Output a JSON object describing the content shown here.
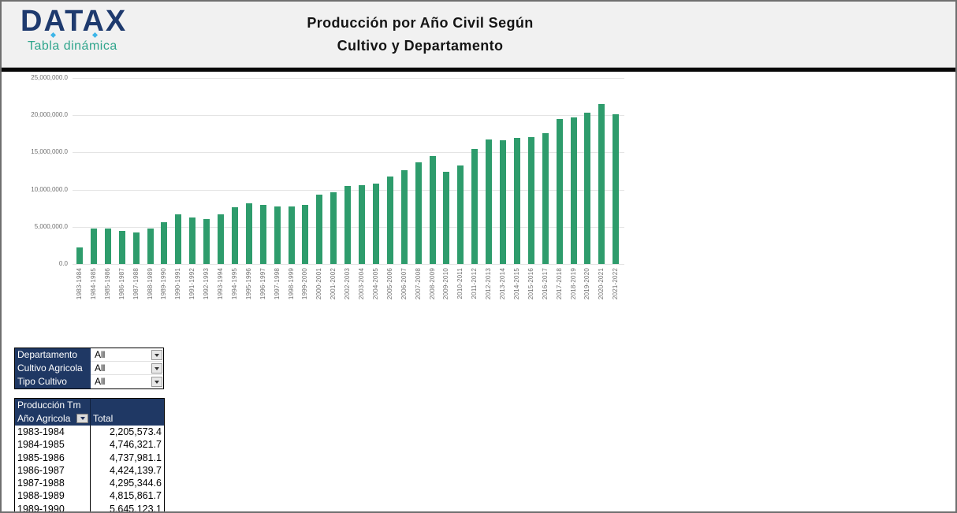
{
  "header": {
    "logo_text": "DATAX",
    "logo_subtitle": "Tabla dinámica",
    "title_line1": "Producción por Año Civil Según",
    "title_line2": "Cultivo y Departamento"
  },
  "colors": {
    "navy_header": "#1F3864",
    "logo_navy": "#1E3A6E",
    "logo_accent": "#3EB6E8",
    "subtitle_teal": "#2FA58C",
    "bar_green": "#2E9C6C",
    "gridline": "#E4E4E4",
    "axis_text": "#6F6F6F",
    "header_bg": "#F1F1F1"
  },
  "chart_data": {
    "type": "bar",
    "title": "",
    "categories": [
      "1983-1984",
      "1984-1985",
      "1985-1986",
      "1986-1987",
      "1987-1988",
      "1988-1989",
      "1989-1990",
      "1990-1991",
      "1991-1992",
      "1992-1993",
      "1993-1994",
      "1994-1995",
      "1995-1996",
      "1996-1997",
      "1997-1998",
      "1998-1999",
      "1999-2000",
      "2000-2001",
      "2001-2002",
      "2002-2003",
      "2003-2004",
      "2004-2005",
      "2005-2006",
      "2006-2007",
      "2007-2008",
      "2008-2009",
      "2009-2010",
      "2010-2011",
      "2011-2012",
      "2012-2013",
      "2013-2014",
      "2014-2015",
      "2015-2016",
      "2016-2017",
      "2017-2018",
      "2018-2019",
      "2019-2020",
      "2020-2021",
      "2021-2022"
    ],
    "values": [
      2205573.4,
      4746321.7,
      4737981.1,
      4424139.7,
      4295344.6,
      4815861.7,
      5645123.1,
      6700000,
      6300000,
      6000000,
      6700000,
      7600000,
      8150000,
      8000000,
      7700000,
      7700000,
      7950000,
      9300000,
      9600000,
      10450000,
      10550000,
      10850000,
      11750000,
      12650000,
      13650000,
      14550000,
      12450000,
      13200000,
      15450000,
      16700000,
      16650000,
      17000000,
      17100000,
      17550000,
      19450000,
      19750000,
      20300000,
      21500000,
      20150000
    ],
    "xlabel": "",
    "ylabel": "",
    "ylim": [
      0,
      25000000
    ],
    "grid": true,
    "legend": "none",
    "x_label_rotation": -90,
    "y_ticks": [
      {
        "v": 0,
        "label": "0.0"
      },
      {
        "v": 5000000,
        "label": "5,000,000.0"
      },
      {
        "v": 10000000,
        "label": "10,000,000.0"
      },
      {
        "v": 15000000,
        "label": "15,000,000.0"
      },
      {
        "v": 20000000,
        "label": "20,000,000.0"
      },
      {
        "v": 25000000,
        "label": "25,000,000.0"
      }
    ]
  },
  "filters": {
    "rows": [
      {
        "label": "Departamento",
        "value": "All"
      },
      {
        "label": "Cultivo Agricola",
        "value": "All"
      },
      {
        "label": "Tipo Cultivo",
        "value": "All"
      }
    ]
  },
  "pivot": {
    "title": "Producción Tm",
    "row_header": "Año Agricola",
    "value_header": "Total",
    "rows": [
      {
        "year": "1983-1984",
        "total": "2,205,573.4"
      },
      {
        "year": "1984-1985",
        "total": "4,746,321.7"
      },
      {
        "year": "1985-1986",
        "total": "4,737,981.1"
      },
      {
        "year": "1986-1987",
        "total": "4,424,139.7"
      },
      {
        "year": "1987-1988",
        "total": "4,295,344.6"
      },
      {
        "year": "1988-1989",
        "total": "4,815,861.7"
      },
      {
        "year": "1989-1990",
        "total": "5,645,123.1"
      }
    ]
  }
}
